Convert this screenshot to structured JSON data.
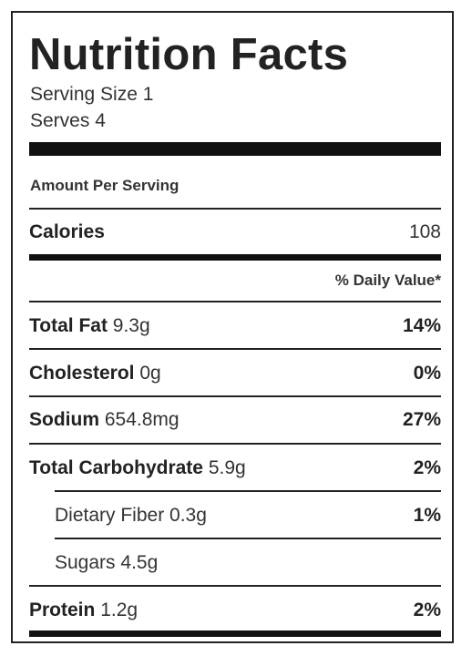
{
  "title": "Nutrition Facts",
  "serving_size": "Serving Size 1",
  "serves": "Serves 4",
  "amount_per_serving": "Amount Per Serving",
  "calories": {
    "label": "Calories",
    "value": "108"
  },
  "daily_value_header": "% Daily Value*",
  "nutrients": [
    {
      "name": "Total Fat",
      "amount": "9.3g",
      "dv": "14%"
    },
    {
      "name": "Cholesterol",
      "amount": "0g",
      "dv": "0%"
    },
    {
      "name": "Sodium",
      "amount": "654.8mg",
      "dv": "27%"
    },
    {
      "name": "Total Carbohydrate",
      "amount": "5.9g",
      "dv": "2%"
    },
    {
      "name": "Dietary Fiber",
      "amount": "0.3g",
      "dv": "1%"
    },
    {
      "name": "Sugars",
      "amount": "4.5g",
      "dv": ""
    },
    {
      "name": "Protein",
      "amount": "1.2g",
      "dv": "2%"
    }
  ]
}
